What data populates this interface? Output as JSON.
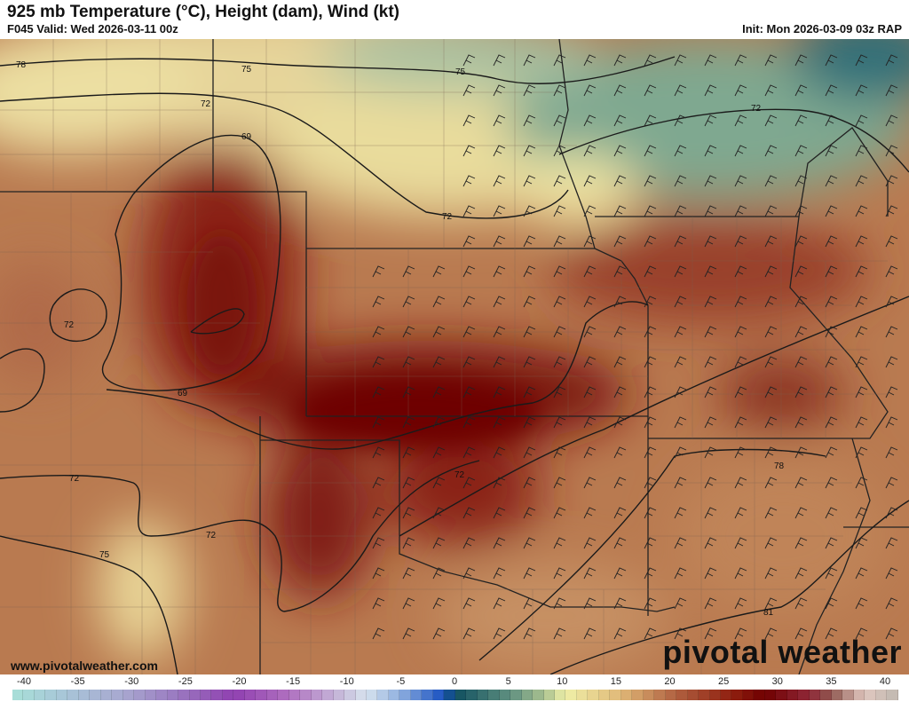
{
  "header": {
    "title": "925 mb Temperature (°C), Height (dam), Wind (kt)",
    "valid": "F045 Valid: Wed 2026-03-11 00z",
    "init": "Init: Mon 2026-03-09 03z RAP"
  },
  "footer": {
    "website": "www.pivotalweather.com",
    "logo": "pivotal weather"
  },
  "contour_labels": [
    "78",
    "75",
    "75",
    "72",
    "69",
    "72",
    "72",
    "69",
    "72",
    "72",
    "75",
    "72",
    "72",
    "78",
    "81"
  ],
  "colorbar": {
    "ticks": [
      "-40",
      "-35",
      "-30",
      "-25",
      "-20",
      "-15",
      "-10",
      "-5",
      "0",
      "5",
      "10",
      "15",
      "20",
      "25",
      "30",
      "35",
      "40"
    ],
    "min": -40,
    "max": 40,
    "stops": [
      [
        -40,
        "#a8e0d8"
      ],
      [
        -35,
        "#a8c4d8"
      ],
      [
        -30,
        "#a8a8d0"
      ],
      [
        -25,
        "#9a78c0"
      ],
      [
        -20,
        "#9040b0"
      ],
      [
        -15,
        "#b070c0"
      ],
      [
        -10,
        "#c8c0dc"
      ],
      [
        -8,
        "#d8e4ee"
      ],
      [
        -5,
        "#90b0e0"
      ],
      [
        -1,
        "#1850c0"
      ],
      [
        0,
        "#105060"
      ],
      [
        5,
        "#609080"
      ],
      [
        8,
        "#a8c090"
      ],
      [
        10,
        "#f0f0a8"
      ],
      [
        15,
        "#e0b878"
      ],
      [
        20,
        "#b06040"
      ],
      [
        25,
        "#902010"
      ],
      [
        28,
        "#700000"
      ],
      [
        32,
        "#902838"
      ],
      [
        34,
        "#905850"
      ],
      [
        37,
        "#e0c8c0"
      ],
      [
        40,
        "#c0b8b0"
      ]
    ]
  }
}
